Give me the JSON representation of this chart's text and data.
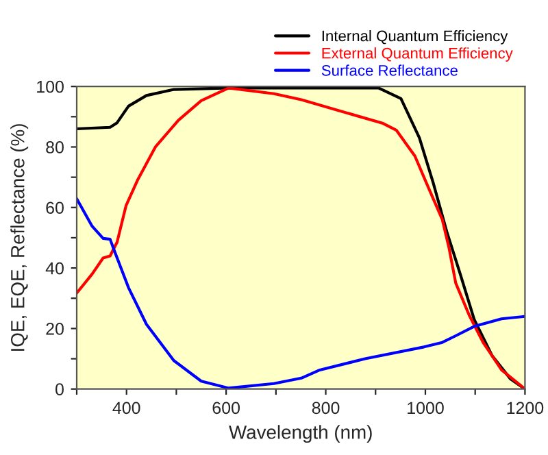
{
  "chart_data": {
    "type": "line",
    "xlabel": "Wavelength (nm)",
    "ylabel": "IQE, EQE, Reflectance (%)",
    "xlim": [
      300,
      1200
    ],
    "ylim": [
      0,
      100
    ],
    "xticks": [
      {
        "value": 300,
        "label": null
      },
      400,
      {
        "value": 500,
        "label": null
      },
      600,
      {
        "value": 700,
        "label": null
      },
      800,
      {
        "value": 900,
        "label": null
      },
      1000,
      {
        "value": 1100,
        "label": null
      },
      1200
    ],
    "yticks": [
      0,
      {
        "value": 10,
        "label": null
      },
      20,
      {
        "value": 30,
        "label": null
      },
      40,
      {
        "value": 50,
        "label": null
      },
      60,
      {
        "value": 70,
        "label": null
      },
      80,
      {
        "value": 90,
        "label": null
      },
      100
    ],
    "grid": false,
    "legend": "top right",
    "marker": "none",
    "line_style": "solid",
    "series": [
      {
        "name": "Internal Quantum Efficiency",
        "color": "#000000",
        "x": [
          300,
          367,
          381,
          404,
          440,
          495,
          605,
          700,
          800,
          906,
          951,
          988,
          1016,
          1043,
          1070,
          1098,
          1134,
          1171,
          1200
        ],
        "values": [
          86,
          86.5,
          88,
          93.5,
          97,
          99,
          99.5,
          99.5,
          99.5,
          99.5,
          96,
          83,
          68,
          52,
          38,
          23,
          11,
          3.3,
          0
        ]
      },
      {
        "name": "External Quantum Efficiency",
        "color": "#ff0000",
        "x": [
          300,
          331,
          353,
          367,
          381,
          399,
          422,
          458,
          504,
          550,
          605,
          696,
          751,
          915,
          942,
          979,
          1006,
          1034,
          1047,
          1061,
          1088,
          1116,
          1153,
          1200
        ],
        "values": [
          31.7,
          38,
          43.3,
          44,
          48.5,
          60.6,
          69,
          80,
          88.8,
          95.3,
          99.5,
          97.6,
          95.6,
          87.8,
          85.5,
          77,
          66.6,
          56,
          47,
          35,
          24.4,
          15.4,
          6.3,
          0
        ]
      },
      {
        "name": "Surface Reflectance",
        "color": "#0000ff",
        "x": [
          300,
          331,
          353,
          367,
          376,
          404,
          440,
          495,
          550,
          605,
          696,
          751,
          788,
          879,
          997,
          1034,
          1061,
          1098,
          1153,
          1200
        ],
        "values": [
          62.9,
          53.8,
          49.8,
          49.5,
          45.5,
          33.5,
          21.4,
          9.4,
          2.6,
          0.3,
          1.8,
          3.6,
          6.3,
          10,
          13.9,
          15.4,
          17.6,
          20.7,
          23.2,
          24
        ]
      }
    ]
  }
}
